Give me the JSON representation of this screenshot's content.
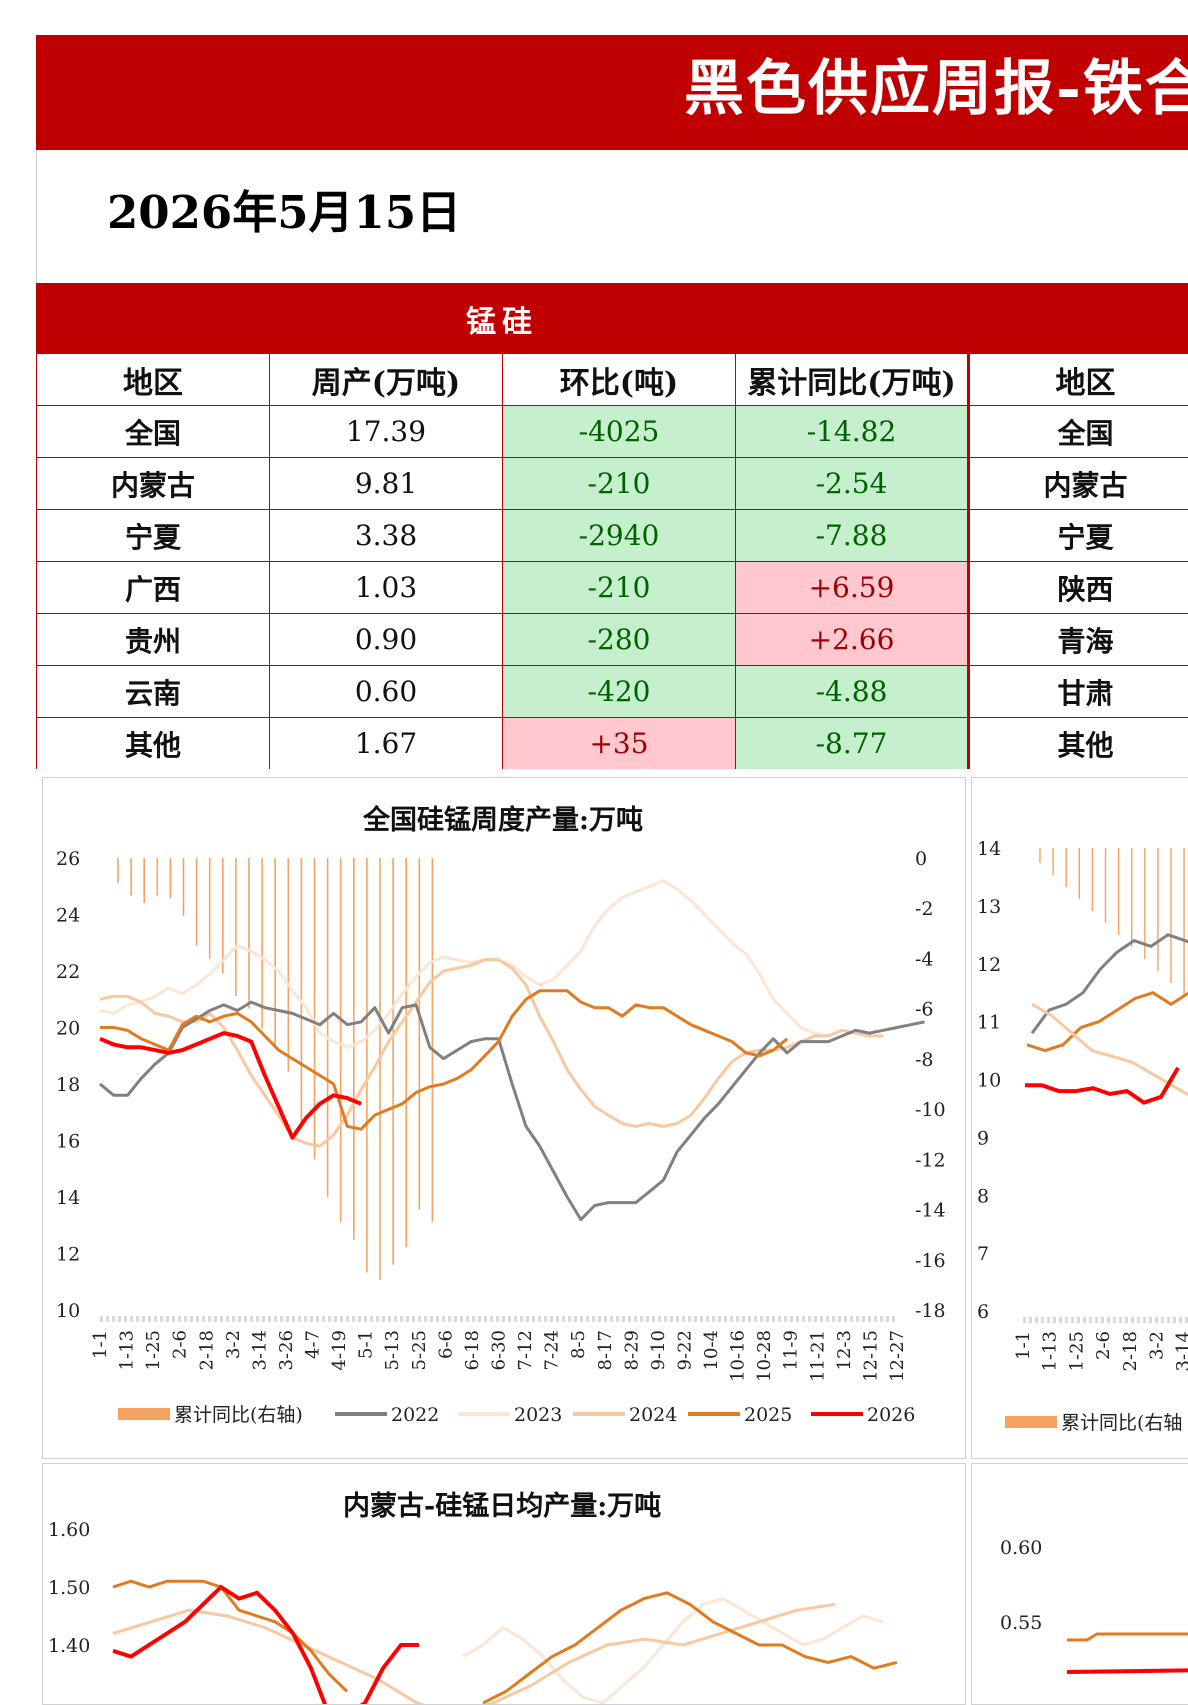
{
  "header": {
    "title": "黑色供应周报-铁合",
    "date": "2026年5月15日"
  },
  "table": {
    "section_title": "锰硅",
    "columns": [
      "地区",
      "周产(万吨)",
      "环比(吨)",
      "累计同比(万吨)",
      "地区"
    ],
    "rows": [
      {
        "region": "全国",
        "weekly": "17.39",
        "wow": "-4025",
        "yoy": "-14.82",
        "region2": "全国"
      },
      {
        "region": "内蒙古",
        "weekly": "9.81",
        "wow": "-210",
        "yoy": "-2.54",
        "region2": "内蒙古"
      },
      {
        "region": "宁夏",
        "weekly": "3.38",
        "wow": "-2940",
        "yoy": "-7.88",
        "region2": "宁夏"
      },
      {
        "region": "广西",
        "weekly": "1.03",
        "wow": "-210",
        "yoy": "+6.59",
        "region2": "陕西"
      },
      {
        "region": "贵州",
        "weekly": "0.90",
        "wow": "-280",
        "yoy": "+2.66",
        "region2": "青海"
      },
      {
        "region": "云南",
        "weekly": "0.60",
        "wow": "-420",
        "yoy": "-4.88",
        "region2": "甘肃"
      },
      {
        "region": "其他",
        "weekly": "1.67",
        "wow": "+35",
        "yoy": "-8.77",
        "region2": "其他"
      }
    ]
  },
  "chart_data": [
    {
      "type": "line",
      "title": "全国硅锰周度产量:万吨",
      "y_left": {
        "range": [
          10,
          26
        ],
        "ticks": [
          "26",
          "24",
          "22",
          "20",
          "18",
          "16",
          "14",
          "12",
          "10"
        ]
      },
      "y_right": {
        "range": [
          -18,
          0
        ],
        "ticks": [
          "0",
          "-2",
          "-4",
          "-6",
          "-8",
          "-10",
          "-12",
          "-14",
          "-16",
          "-18"
        ]
      },
      "x_ticks": [
        "1-1",
        "1-13",
        "1-25",
        "2-6",
        "2-18",
        "3-2",
        "3-14",
        "3-26",
        "4-7",
        "4-19",
        "5-1",
        "5-13",
        "5-25",
        "6-6",
        "6-18",
        "6-30",
        "7-12",
        "7-24",
        "8-5",
        "8-17",
        "8-29",
        "9-10",
        "9-22",
        "10-4",
        "10-16",
        "10-28",
        "11-9",
        "11-21",
        "12-3",
        "12-15",
        "12-27"
      ],
      "legend": [
        "累计同比(右轴)",
        "2022",
        "2023",
        "2024",
        "2025",
        "2026"
      ],
      "legend_placement": "bottom",
      "colors": {
        "yoy": "#f4a460",
        "2022": "#808080",
        "2023": "#fde5d4",
        "2024": "#f8c8a0",
        "2025": "#e07b20",
        "2026": "#ff0000"
      },
      "yoy_bars": [
        -1,
        -1.5,
        -1.8,
        -1.5,
        -1.6,
        -2.3,
        -3.5,
        -4,
        -4.6,
        -5.5,
        -6,
        -6.8,
        -7.5,
        -8.5,
        -10.5,
        -12,
        -13.5,
        -14.5,
        -15.2,
        -16.5,
        -16.8,
        -16.2,
        -15.5,
        -14,
        -14.5
      ],
      "series": [
        {
          "name": "2022",
          "values": [
            18,
            17.6,
            17.6,
            18.2,
            18.7,
            19.1,
            20,
            20.3,
            20.6,
            20.8,
            20.6,
            20.9,
            20.7,
            20.6,
            20.5,
            20.3,
            20.1,
            20.5,
            20.1,
            20.2,
            20.7,
            19.8,
            20.7,
            20.8,
            19.3,
            18.9,
            19.2,
            19.5,
            19.6,
            19.6,
            18,
            16.5,
            15.8,
            14.9,
            14,
            13.2,
            13.7,
            13.8,
            13.8,
            13.8,
            14.2,
            14.6,
            15.6,
            16.2,
            16.8,
            17.3,
            17.9,
            18.5,
            19.1,
            19.6,
            19.1,
            19.5,
            19.5,
            19.5,
            19.7,
            19.9,
            19.8,
            19.9,
            20,
            20.1,
            20.2
          ]
        },
        {
          "name": "2023",
          "values": [
            20.6,
            20.5,
            20.8,
            20.9,
            21.1,
            21.4,
            21.2,
            21.5,
            21.9,
            22.4,
            22.9,
            22.7,
            22.4,
            22,
            21.3,
            20.7,
            19.8,
            19.5,
            19.3,
            19.5,
            19.9,
            20.5,
            21.2,
            21.8,
            22.3,
            22.5,
            22.4,
            22.3,
            22.4,
            22.4,
            22.2,
            21.8,
            21.5,
            21.7,
            22.2,
            22.7,
            23.6,
            24.2,
            24.6,
            24.8,
            25,
            25.2,
            24.9,
            24.5,
            24,
            23.5,
            23,
            22.6,
            21.9,
            21,
            20.5,
            20,
            19.8,
            19.7
          ]
        },
        {
          "name": "2024",
          "values": [
            21,
            21.1,
            21.1,
            20.9,
            20.5,
            20.4,
            20.2,
            20.2,
            20.5,
            20,
            19.2,
            18.3,
            17.6,
            16.9,
            16.1,
            15.9,
            15.8,
            16.2,
            16.9,
            17.8,
            18.6,
            19.5,
            20.2,
            20.9,
            21.6,
            22,
            22.1,
            22.2,
            22.4,
            22.4,
            22.1,
            21.5,
            20.4,
            19.5,
            18.5,
            17.8,
            17.2,
            16.9,
            16.6,
            16.5,
            16.6,
            16.5,
            16.6,
            16.9,
            17.5,
            18.2,
            18.8,
            19.1,
            19.2,
            19.2,
            19.3,
            19.5,
            19.7,
            19.7,
            19.9,
            19.8,
            19.7,
            19.7
          ]
        },
        {
          "name": "2025",
          "values": [
            20,
            20,
            19.9,
            19.6,
            19.4,
            19.2,
            20.1,
            20.4,
            20.2,
            20.4,
            20.5,
            20.2,
            19.7,
            19.2,
            18.9,
            18.6,
            18.3,
            18,
            16.5,
            16.4,
            16.9,
            17.1,
            17.3,
            17.7,
            17.9,
            18,
            18.2,
            18.5,
            19,
            19.5,
            20.4,
            21,
            21.3,
            21.3,
            21.3,
            20.9,
            20.7,
            20.7,
            20.4,
            20.8,
            20.7,
            20.7,
            20.4,
            20.1,
            19.9,
            19.7,
            19.5,
            19.1,
            19,
            19.2,
            19.6
          ]
        },
        {
          "name": "2026",
          "values": [
            19.6,
            19.4,
            19.3,
            19.3,
            19.2,
            19.1,
            19.2,
            19.4,
            19.6,
            19.8,
            19.7,
            19.5,
            18.3,
            17.2,
            16.1,
            16.8,
            17.3,
            17.6,
            17.5,
            17.3
          ]
        }
      ]
    },
    {
      "type": "line",
      "y_left": {
        "ticks": [
          "14",
          "13",
          "12",
          "11",
          "10",
          "9",
          "8",
          "7",
          "6"
        ]
      },
      "x_ticks": [
        "1-1",
        "1-13",
        "1-25",
        "2-6",
        "2-18",
        "3-2",
        "3-14"
      ],
      "legend": [
        "累计同比(右轴"
      ]
    },
    {
      "type": "line",
      "title": "内蒙古-硅锰日均产量:万吨",
      "y_left": {
        "ticks": [
          "1.60",
          "1.50",
          "1.40"
        ]
      },
      "series": [
        {
          "name": "2025",
          "values": [
            1.5,
            1.51,
            1.5,
            1.51,
            1.51,
            1.51,
            1.5,
            1.46,
            1.45,
            1.44,
            1.42,
            1.39,
            1.35,
            1.32
          ]
        },
        {
          "name": "2026",
          "values": [
            1.39,
            1.38,
            1.4,
            1.42,
            1.44,
            1.47,
            1.5,
            1.48,
            1.49,
            1.46,
            1.42,
            1.36,
            1.28,
            1.28,
            1.3,
            1.36,
            1.4,
            1.4
          ]
        },
        {
          "name": "2024",
          "values": [
            1.42,
            1.44,
            1.46,
            1.45,
            1.43,
            1.4,
            1.37,
            1.34,
            1.3,
            1.28,
            1.3,
            1.33,
            1.37,
            1.4,
            1.41,
            1.4,
            1.42,
            1.44,
            1.46,
            1.47
          ]
        }
      ]
    },
    {
      "type": "line",
      "y_left": {
        "ticks": [
          "0.60",
          "0.55"
        ]
      }
    }
  ]
}
